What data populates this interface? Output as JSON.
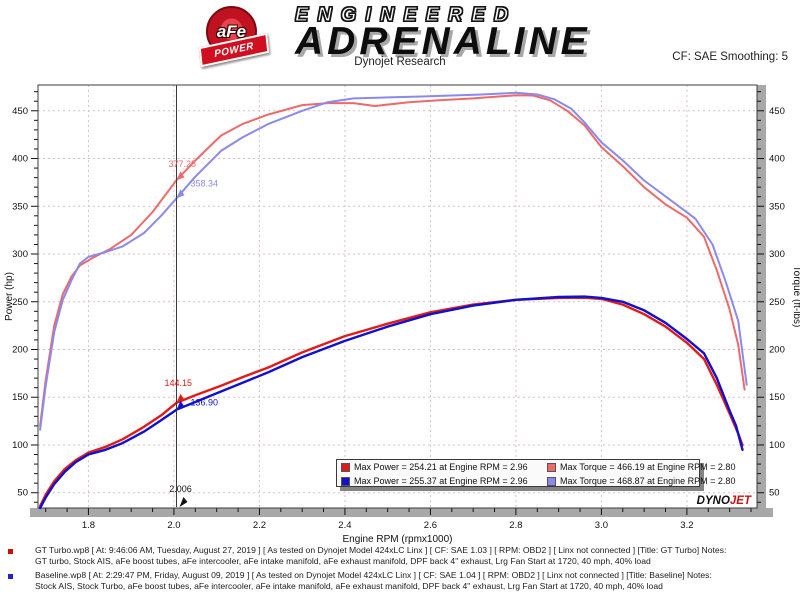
{
  "header": {
    "logo_afe": "aFe",
    "logo_power": "POWER",
    "brand_top": "ENGINEERED",
    "brand_main": "ADRENALINE",
    "subtitle": "Dynojet Research",
    "smoothing": "CF: SAE Smoothing: 5"
  },
  "watermark": {
    "dyno": "DYNO",
    "jet": "JET"
  },
  "chart_data": {
    "type": "line",
    "title": "",
    "xlabel": "Engine RPM (rpmx1000)",
    "ylabel_left": "Power (hp)",
    "ylabel_right": "Torque (ft-lbs)",
    "xlim": [
      1.682,
      3.364
    ],
    "ylim": [
      34,
      477
    ],
    "x_ticks": [
      1.8,
      2.0,
      2.2,
      2.4,
      2.6,
      2.8,
      3.0,
      3.2
    ],
    "y_ticks": [
      50,
      100,
      150,
      200,
      250,
      300,
      350,
      400,
      450
    ],
    "x_minor_step": 0.05,
    "y_minor_step": 10,
    "grid": true,
    "legend_position": "bottom-center",
    "series": [
      {
        "name": "GT Turbo Torque",
        "unit": "ft-lbs",
        "color": "#ee6a6a",
        "width": 2,
        "points": [
          [
            1.687,
            120
          ],
          [
            1.7,
            168
          ],
          [
            1.72,
            225
          ],
          [
            1.74,
            258
          ],
          [
            1.76,
            276
          ],
          [
            1.78,
            288
          ],
          [
            1.81,
            296
          ],
          [
            1.85,
            305
          ],
          [
            1.9,
            320
          ],
          [
            1.95,
            344
          ],
          [
            2.006,
            377.25
          ],
          [
            2.05,
            398
          ],
          [
            2.11,
            424
          ],
          [
            2.16,
            436
          ],
          [
            2.22,
            446
          ],
          [
            2.3,
            456
          ],
          [
            2.36,
            458
          ],
          [
            2.42,
            458
          ],
          [
            2.47,
            455
          ],
          [
            2.55,
            459
          ],
          [
            2.62,
            461
          ],
          [
            2.7,
            463
          ],
          [
            2.76,
            465
          ],
          [
            2.8,
            466.19
          ],
          [
            2.84,
            466
          ],
          [
            2.88,
            461
          ],
          [
            2.92,
            450
          ],
          [
            2.96,
            435
          ],
          [
            3.0,
            412
          ],
          [
            3.05,
            392
          ],
          [
            3.1,
            370
          ],
          [
            3.15,
            352
          ],
          [
            3.2,
            338
          ],
          [
            3.24,
            318
          ],
          [
            3.27,
            283
          ],
          [
            3.3,
            242
          ],
          [
            3.32,
            205
          ],
          [
            3.335,
            158
          ]
        ]
      },
      {
        "name": "Baseline Torque",
        "unit": "ft-lbs",
        "color": "#8a8aec",
        "width": 2,
        "points": [
          [
            1.687,
            116
          ],
          [
            1.7,
            162
          ],
          [
            1.72,
            218
          ],
          [
            1.74,
            252
          ],
          [
            1.76,
            272
          ],
          [
            1.78,
            290
          ],
          [
            1.8,
            297
          ],
          [
            1.84,
            302
          ],
          [
            1.88,
            308
          ],
          [
            1.93,
            322
          ],
          [
            1.97,
            340
          ],
          [
            2.006,
            358.34
          ],
          [
            2.05,
            381
          ],
          [
            2.11,
            408
          ],
          [
            2.16,
            422
          ],
          [
            2.22,
            436
          ],
          [
            2.3,
            450
          ],
          [
            2.36,
            459
          ],
          [
            2.42,
            463
          ],
          [
            2.5,
            464
          ],
          [
            2.58,
            465
          ],
          [
            2.65,
            466
          ],
          [
            2.72,
            467
          ],
          [
            2.8,
            468.87
          ],
          [
            2.85,
            467
          ],
          [
            2.89,
            462
          ],
          [
            2.93,
            452
          ],
          [
            2.96,
            438
          ],
          [
            3.0,
            417
          ],
          [
            3.05,
            398
          ],
          [
            3.1,
            377
          ],
          [
            3.16,
            357
          ],
          [
            3.22,
            337
          ],
          [
            3.26,
            310
          ],
          [
            3.29,
            272
          ],
          [
            3.32,
            230
          ],
          [
            3.34,
            163
          ]
        ]
      },
      {
        "name": "GT Turbo Power",
        "unit": "hp",
        "color": "#e11a1a",
        "width": 2.4,
        "points": [
          [
            1.687,
            36
          ],
          [
            1.7,
            48
          ],
          [
            1.72,
            62
          ],
          [
            1.745,
            75
          ],
          [
            1.77,
            84
          ],
          [
            1.8,
            92
          ],
          [
            1.84,
            98
          ],
          [
            1.88,
            106
          ],
          [
            1.93,
            119
          ],
          [
            1.97,
            131
          ],
          [
            2.006,
            144.15
          ],
          [
            2.05,
            152
          ],
          [
            2.11,
            162
          ],
          [
            2.16,
            171
          ],
          [
            2.22,
            181
          ],
          [
            2.3,
            197
          ],
          [
            2.4,
            214
          ],
          [
            2.5,
            227
          ],
          [
            2.6,
            239
          ],
          [
            2.7,
            247
          ],
          [
            2.8,
            252
          ],
          [
            2.9,
            254
          ],
          [
            2.96,
            254.21
          ],
          [
            3.0,
            253
          ],
          [
            3.05,
            247
          ],
          [
            3.1,
            237
          ],
          [
            3.15,
            224
          ],
          [
            3.2,
            207
          ],
          [
            3.24,
            190
          ],
          [
            3.27,
            163
          ],
          [
            3.3,
            133
          ],
          [
            3.32,
            112
          ],
          [
            3.33,
            100
          ]
        ]
      },
      {
        "name": "Baseline Power",
        "unit": "hp",
        "color": "#1111cb",
        "width": 2.4,
        "points": [
          [
            1.687,
            34
          ],
          [
            1.7,
            45
          ],
          [
            1.72,
            59
          ],
          [
            1.745,
            72
          ],
          [
            1.77,
            82
          ],
          [
            1.8,
            90
          ],
          [
            1.84,
            95
          ],
          [
            1.88,
            102
          ],
          [
            1.93,
            114
          ],
          [
            1.97,
            126
          ],
          [
            2.006,
            136.9
          ],
          [
            2.05,
            145
          ],
          [
            2.11,
            156
          ],
          [
            2.16,
            165
          ],
          [
            2.22,
            176
          ],
          [
            2.3,
            192
          ],
          [
            2.4,
            209
          ],
          [
            2.5,
            224
          ],
          [
            2.6,
            237
          ],
          [
            2.7,
            246
          ],
          [
            2.8,
            252
          ],
          [
            2.9,
            255
          ],
          [
            2.96,
            255.37
          ],
          [
            3.0,
            254
          ],
          [
            3.05,
            250
          ],
          [
            3.1,
            241
          ],
          [
            3.15,
            228
          ],
          [
            3.2,
            211
          ],
          [
            3.24,
            196
          ],
          [
            3.27,
            170
          ],
          [
            3.3,
            136
          ],
          [
            3.315,
            120
          ],
          [
            3.33,
            95
          ]
        ]
      }
    ],
    "cursor": {
      "rpm": 2.006,
      "x_label": "2.006",
      "markers": [
        {
          "label": "377.25",
          "value": 377.25,
          "color": "#ee6a6a"
        },
        {
          "label": "358.34",
          "value": 358.34,
          "color": "#8a8aec"
        },
        {
          "label": "144.15",
          "value": 144.15,
          "color": "#e11a1a"
        },
        {
          "label": "136.90",
          "value": 136.9,
          "color": "#1111cb"
        }
      ]
    },
    "legend": {
      "entries": [
        {
          "color": "#e11a1a",
          "text": "Max Power = 254.21 at Engine RPM = 2.96"
        },
        {
          "color": "#1111cb",
          "text": "Max Power = 255.37 at Engine RPM = 2.96"
        },
        {
          "color": "#ee6a6a",
          "text": "Max Torque = 466.19 at Engine RPM = 2.80"
        },
        {
          "color": "#8a8aec",
          "text": "Max Torque = 468.87 at Engine RPM = 2.80"
        }
      ]
    }
  },
  "runs": [
    {
      "bullet_color": "#cc1100",
      "line1": "GT Turbo.wp8 [ At: 9:46:06 AM, Tuesday, August 27, 2019 ] [ As tested on Dynojet Model 424xLC Linx ] [ CF: SAE 1.03 ] [ RPM: OBD2 ] [ Linx not connected ] [Title: GT Turbo]  Notes:",
      "line2": "GT turbo, Stock AIS, aFe boost tubes, aFe intercooler, aFe  intake manifold, aFe exhaust manifold, DPF back 4\" exhaust, Lrg Fan Start at 1720, 40 mph, 40% load"
    },
    {
      "bullet_color": "#2222cc",
      "line1": "Baseline.wp8 [ At: 2:29:47 PM, Friday, August 09, 2019 ] [ As tested on Dynojet Model 424xLC Linx ] [ CF: SAE 1.04 ] [ RPM: OBD2 ] [ Linx not connected ] [Title: Baseline]  Notes:",
      "line2": "Stock AIS, Stock Turbo, aFe boost tubes, aFe intercooler, aFe intake manifold, aFe exhaust manifold, DPF back 4\" exhaust, Lrg Fan Start at 1720, 40 mph, 40% load"
    }
  ]
}
